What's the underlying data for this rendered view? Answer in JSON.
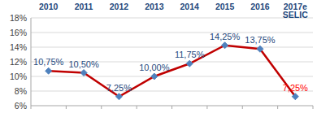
{
  "chart_data": {
    "type": "line",
    "categories": [
      "2010",
      "2011",
      "2012",
      "2013",
      "2014",
      "2015",
      "2016",
      "2017e SELIC"
    ],
    "values": [
      10.75,
      10.5,
      7.25,
      10.0,
      11.75,
      14.25,
      13.75,
      7.25
    ],
    "value_labels": [
      "10,75%",
      "10,50%",
      "7,25%",
      "10,00%",
      "11,75%",
      "14,25%",
      "13,75%",
      "7,25%"
    ],
    "color": "#c00000",
    "marker": "diamond",
    "line_style": "solid",
    "data_labels": true,
    "ylim": [
      6,
      18
    ],
    "yticks": [
      {
        "value": 6,
        "label": "6%"
      },
      {
        "value": 8,
        "label": "8%"
      },
      {
        "value": 10,
        "label": "10%"
      },
      {
        "value": 12,
        "label": "12%"
      },
      {
        "value": 14,
        "label": "14%"
      },
      {
        "value": 16,
        "label": "16%"
      },
      {
        "value": 18,
        "label": "18%"
      }
    ],
    "grid": true
  }
}
